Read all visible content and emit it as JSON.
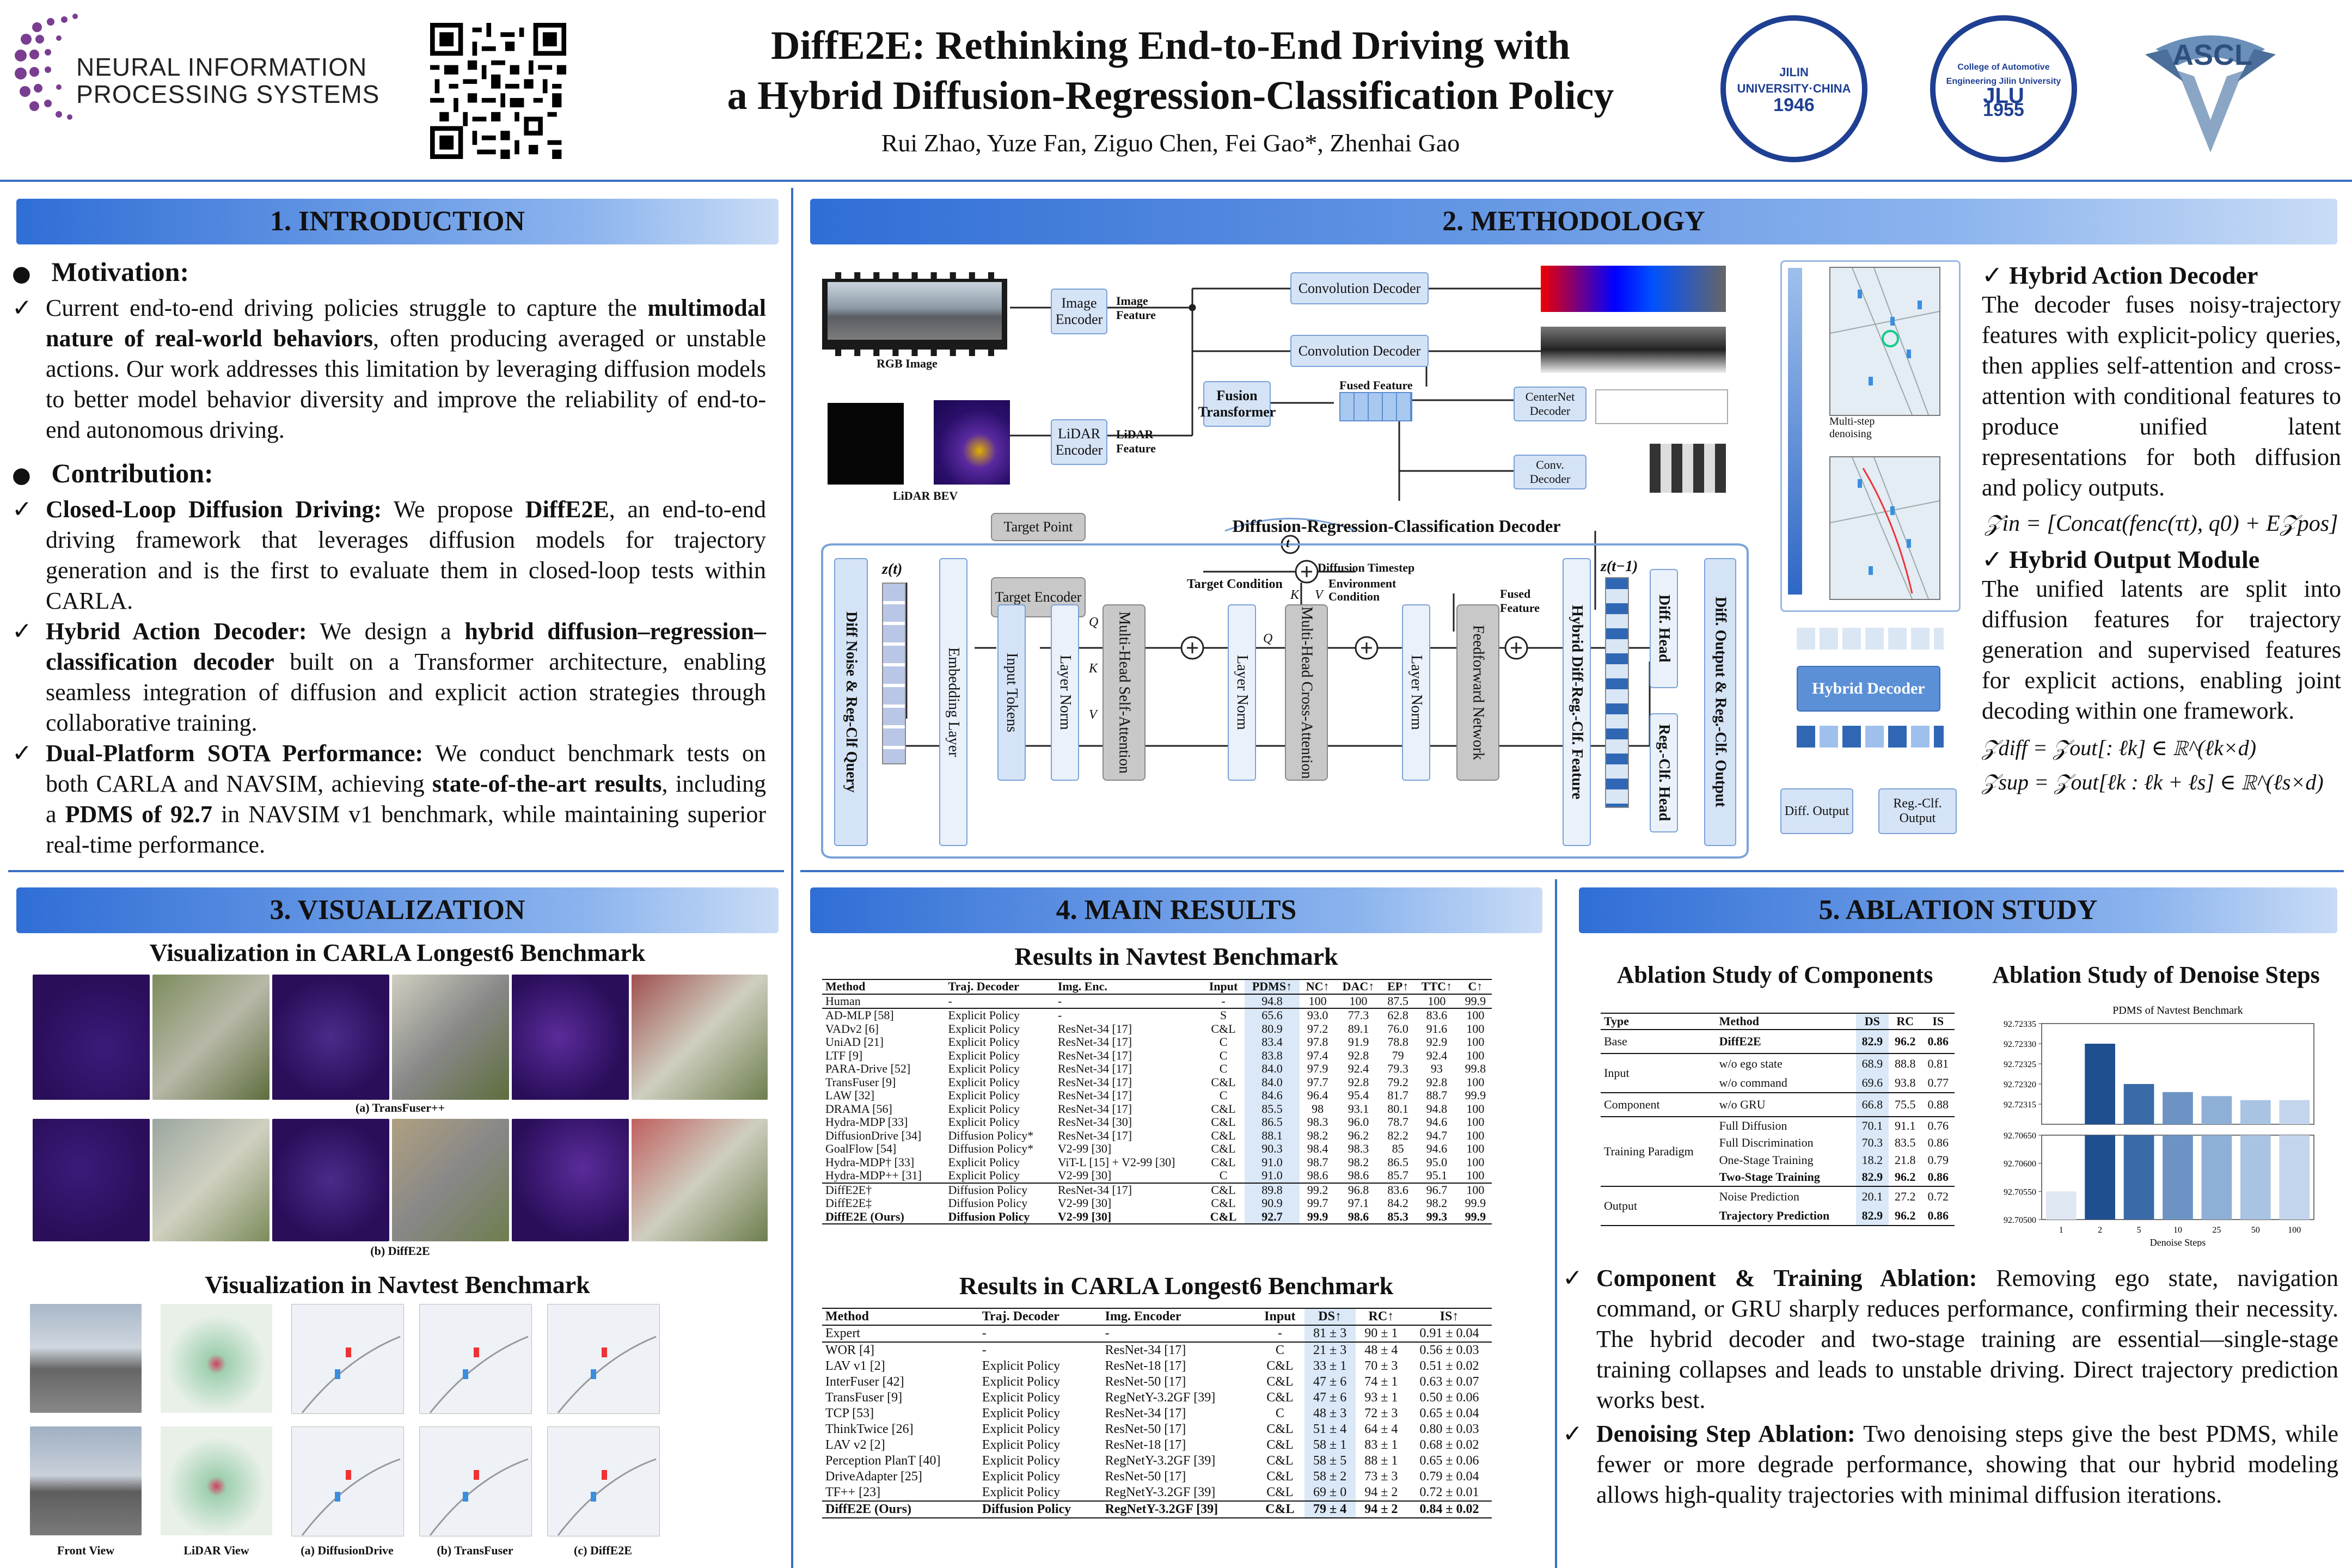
{
  "header": {
    "title_line1": "DiffE2E: Rethinking End-to-End Driving with",
    "title_line2": "a Hybrid Diffusion-Regression-Classification Policy",
    "authors": "Rui Zhao, Yuze Fan, Ziguo Chen, Fei Gao*, Zhenhai Gao",
    "logo_line1": "NEURAL INFORMATION",
    "logo_line2": "PROCESSING SYSTEMS",
    "seal1_text": "JILIN UNIVERSITY·CHINA",
    "seal1_year": "1946",
    "seal2_text": "College of Automotive Engineering Jilin University",
    "seal2_year": "1955",
    "seal2_mid": "JLU",
    "ascl": "ASCL"
  },
  "intro": {
    "heading": "1. INTRODUCTION",
    "motivation_title": "Motivation:",
    "motivation_pre": "Current end-to-end driving policies struggle to capture the ",
    "motivation_bold": "multimodal nature of real-world behaviors",
    "motivation_post": ", often producing averaged or unstable actions. Our work addresses this limitation by leveraging diffusion models to better model behavior diversity and improve the reliability of end-to-end autonomous driving.",
    "contribution_title": "Contribution:",
    "c1_title": "Closed-Loop Diffusion Driving:",
    "c1_pre": " We propose ",
    "c1_bold": "DiffE2E",
    "c1_post": ", an end-to-end driving framework that leverages diffusion models for trajectory generation and is the first to evaluate them in closed-loop tests within CARLA.",
    "c2_title": "Hybrid Action Decoder:",
    "c2_pre": " We design a ",
    "c2_bold": "hybrid diffusion–regression–classification decoder",
    "c2_post": " built on a Transformer architecture, enabling seamless integration of diffusion and explicit action strategies through collaborative training.",
    "c3_title": "Dual-Platform SOTA Performance:",
    "c3_pre": " We conduct benchmark tests on both CARLA and NAVSIM, achieving ",
    "c3_bold1": "state-of-the-art results",
    "c3_mid": ", including a ",
    "c3_bold2": "PDMS of 92.7",
    "c3_post": " in NAVSIM v1 benchmark, while maintaining superior real-time performance."
  },
  "method": {
    "heading": "2. METHODOLOGY",
    "rgb_label": "RGB Image",
    "lidar_label": "LiDAR BEV",
    "image_encoder": "Image Encoder",
    "lidar_encoder": "LiDAR Encoder",
    "image_feature": "Image Feature",
    "lidar_feature": "LiDAR Feature",
    "fusion_transformer": "Fusion Transformer",
    "fused_feature": "Fused Feature",
    "conv_decoder1": "Convolution Decoder",
    "conv_decoder2": "Convolution Decoder",
    "centernet_decoder": "CenterNet Decoder",
    "conv_decoder3": "Conv. Decoder",
    "target_point": "Target Point",
    "drc_decoder": "Diffusion-Regression-Classification Decoder",
    "diff_noise_query": "Diff Noise & Reg-Clf Query",
    "z_t": "z(t)",
    "z_t1": "z(t−1)",
    "embedding_layer": "Embedding Layer",
    "target_encoder": "Target Encoder",
    "target_condition": "Target Condition",
    "diffusion_timestep": "Diffusion Timestep",
    "environment_condition": "Environment Condition",
    "fused_feature2": "Fused Feature",
    "input_tokens": "Input Tokens",
    "layer_norm": "Layer Norm",
    "mhsa": "Multi-Head Self-Attention",
    "mhca": "Multi-Head Cross-Attention",
    "ffn": "Feedforward Network",
    "hybrid_feature": "Hybrid Diff-Reg.-Clf. Feature",
    "diff_head": "Diff. Head",
    "regclf_head": "Reg.-Clf. Head",
    "diff_output": "Diff. Output & Reg.-Clf. Output",
    "multistep": "Multi-step denoising",
    "hybrid_decoder": "Hybrid Decoder",
    "diff_output_small": "Diff. Output",
    "regclf_output_small": "Reg.-Clf. Output",
    "q": "Q",
    "k": "K",
    "v": "V",
    "t": "t",
    "had_title": "Hybrid Action Decoder",
    "had_text": "The decoder fuses noisy-trajectory features with explicit-policy queries, then applies self-attention and cross-attention with conditional features to produce unified latent representations for both diffusion and policy outputs.",
    "eq1": "𝒵in = [Concat(fenc(τt), q0) + E𝒵pos]",
    "hom_title": "Hybrid Output Module",
    "hom_text": "The unified latents are split into diffusion features for trajectory generation and supervised features for explicit actions, enabling joint decoding within one framework.",
    "eq2": "𝒵diff = 𝒵out[: ℓk] ∈ ℝ^(ℓk×d)",
    "eq3": "𝒵sup = 𝒵out[ℓk : ℓk + ℓs] ∈ ℝ^(ℓs×d)"
  },
  "viz": {
    "heading": "3. VISUALIZATION",
    "carla_title": "Visualization in CARLA Longest6 Benchmark",
    "cap_a": "(a) TransFuser++",
    "cap_b": "(b) DiffE2E",
    "navtest_title": "Visualization in Navtest Benchmark",
    "cap_front": "Front View",
    "cap_lidar": "LiDAR View",
    "cap_dd": "(a) DiffusionDrive",
    "cap_tf": "(b) TransFuser",
    "cap_de": "(c) DiffE2E"
  },
  "results": {
    "heading": "4. MAIN RESULTS",
    "navtest_title": "Results in Navtest Benchmark",
    "navtest_header": [
      "Method",
      "Traj. Decoder",
      "Img. Enc.",
      "Input",
      "PDMS↑",
      "NC↑",
      "DAC↑",
      "EP↑",
      "TTC↑",
      "C↑"
    ],
    "navtest_human": [
      "Human",
      "-",
      "-",
      "-",
      "94.8",
      "100",
      "100",
      "87.5",
      "100",
      "99.9"
    ],
    "navtest_rows": [
      [
        "AD-MLP [58]",
        "Explicit Policy",
        "-",
        "S",
        "65.6",
        "93.0",
        "77.3",
        "62.8",
        "83.6",
        "100"
      ],
      [
        "VADv2 [6]",
        "Explicit Policy",
        "ResNet-34 [17]",
        "C&L",
        "80.9",
        "97.2",
        "89.1",
        "76.0",
        "91.6",
        "100"
      ],
      [
        "UniAD [21]",
        "Explicit Policy",
        "ResNet-34 [17]",
        "C",
        "83.4",
        "97.8",
        "91.9",
        "78.8",
        "92.9",
        "100"
      ],
      [
        "LTF [9]",
        "Explicit Policy",
        "ResNet-34 [17]",
        "C",
        "83.8",
        "97.4",
        "92.8",
        "79",
        "92.4",
        "100"
      ],
      [
        "PARA-Drive [52]",
        "Explicit Policy",
        "ResNet-34 [17]",
        "C",
        "84.0",
        "97.9",
        "92.4",
        "79.3",
        "93",
        "99.8"
      ],
      [
        "TransFuser [9]",
        "Explicit Policy",
        "ResNet-34 [17]",
        "C&L",
        "84.0",
        "97.7",
        "92.8",
        "79.2",
        "92.8",
        "100"
      ],
      [
        "LAW [32]",
        "Explicit Policy",
        "ResNet-34 [17]",
        "C",
        "84.6",
        "96.4",
        "95.4",
        "81.7",
        "88.7",
        "99.9"
      ],
      [
        "DRAMA [56]",
        "Explicit Policy",
        "ResNet-34 [17]",
        "C&L",
        "85.5",
        "98",
        "93.1",
        "80.1",
        "94.8",
        "100"
      ],
      [
        "Hydra-MDP [33]",
        "Explicit Policy",
        "ResNet-34 [30]",
        "C&L",
        "86.5",
        "98.3",
        "96.0",
        "78.7",
        "94.6",
        "100"
      ],
      [
        "DiffusionDrive [34]",
        "Diffusion Policy*",
        "ResNet-34 [17]",
        "C&L",
        "88.1",
        "98.2",
        "96.2",
        "82.2",
        "94.7",
        "100"
      ],
      [
        "GoalFlow [54]",
        "Diffusion Policy*",
        "V2-99 [30]",
        "C&L",
        "90.3",
        "98.4",
        "98.3",
        "85",
        "94.6",
        "100"
      ],
      [
        "Hydra-MDP† [33]",
        "Explicit Policy",
        "ViT-L [15] + V2-99 [30]",
        "C&L",
        "91.0",
        "98.7",
        "98.2",
        "86.5",
        "95.0",
        "100"
      ],
      [
        "Hydra-MDP++ [31]",
        "Explicit Policy",
        "V2-99 [30]",
        "C",
        "91.0",
        "98.6",
        "98.6",
        "85.7",
        "95.1",
        "100"
      ]
    ],
    "navtest_ours": [
      [
        "DiffE2E†",
        "Diffusion Policy",
        "ResNet-34 [17]",
        "C&L",
        "89.8",
        "99.2",
        "96.8",
        "83.6",
        "96.7",
        "100"
      ],
      [
        "DiffE2E‡",
        "Diffusion Policy",
        "V2-99 [30]",
        "C&L",
        "90.9",
        "99.7",
        "97.1",
        "84.2",
        "98.2",
        "99.9"
      ],
      [
        "DiffE2E (Ours)",
        "Diffusion Policy",
        "V2-99 [30]",
        "C&L",
        "92.7",
        "99.9",
        "98.6",
        "85.3",
        "99.3",
        "99.9"
      ]
    ],
    "carla_title": "Results in CARLA Longest6 Benchmark",
    "carla_header": [
      "Method",
      "Traj. Decoder",
      "Img. Encoder",
      "Input",
      "DS↑",
      "RC↑",
      "IS↑"
    ],
    "carla_expert": [
      "Expert",
      "-",
      "-",
      "-",
      "81 ± 3",
      "90 ± 1",
      "0.91 ± 0.04"
    ],
    "carla_rows": [
      [
        "WOR [4]",
        "-",
        "ResNet-34 [17]",
        "C",
        "21 ± 3",
        "48 ± 4",
        "0.56 ± 0.03"
      ],
      [
        "LAV v1 [2]",
        "Explicit Policy",
        "ResNet-18 [17]",
        "C&L",
        "33 ± 1",
        "70 ± 3",
        "0.51 ± 0.02"
      ],
      [
        "InterFuser [42]",
        "Explicit Policy",
        "ResNet-50 [17]",
        "C&L",
        "47 ± 6",
        "74 ± 1",
        "0.63 ± 0.07"
      ],
      [
        "TransFuser [9]",
        "Explicit Policy",
        "RegNetY-3.2GF [39]",
        "C&L",
        "47 ± 6",
        "93 ± 1",
        "0.50 ± 0.06"
      ],
      [
        "TCP [53]",
        "Explicit Policy",
        "ResNet-34 [17]",
        "C",
        "48 ± 3",
        "72 ± 3",
        "0.65 ± 0.04"
      ],
      [
        "ThinkTwice [26]",
        "Explicit Policy",
        "ResNet-50 [17]",
        "C&L",
        "51 ± 4",
        "64 ± 4",
        "0.80 ± 0.03"
      ],
      [
        "LAV v2 [2]",
        "Explicit Policy",
        "ResNet-18 [17]",
        "C&L",
        "58 ± 1",
        "83 ± 1",
        "0.68 ± 0.02"
      ],
      [
        "Perception PlanT [40]",
        "Explicit Policy",
        "RegNetY-3.2GF [39]",
        "C&L",
        "58 ± 5",
        "88 ± 1",
        "0.65 ± 0.06"
      ],
      [
        "DriveAdapter [25]",
        "Explicit Policy",
        "ResNet-50 [17]",
        "C&L",
        "58 ± 2",
        "73 ± 3",
        "0.79 ± 0.04"
      ],
      [
        "TF++ [23]",
        "Explicit Policy",
        "RegNetY-3.2GF [39]",
        "C&L",
        "69 ± 0",
        "94 ± 2",
        "0.72 ± 0.01"
      ]
    ],
    "carla_ours": [
      "DiffE2E (Ours)",
      "Diffusion Policy",
      "RegNetY-3.2GF [39]",
      "C&L",
      "79 ± 4",
      "94 ± 2",
      "0.84 ± 0.02"
    ]
  },
  "ablation": {
    "heading": "5. ABLATION STUDY",
    "comp_title": "Ablation Study of Components",
    "comp_header": [
      "Type",
      "Method",
      "DS",
      "RC",
      "IS"
    ],
    "comp_groups": [
      {
        "type": "Base",
        "rows": [
          [
            "DiffE2E",
            "82.9",
            "96.2",
            "0.86"
          ]
        ]
      },
      {
        "type": "Input",
        "rows": [
          [
            "w/o ego state",
            "68.9",
            "88.8",
            "0.81"
          ],
          [
            "w/o command",
            "69.6",
            "93.8",
            "0.77"
          ]
        ]
      },
      {
        "type": "Component",
        "rows": [
          [
            "w/o GRU",
            "66.8",
            "75.5",
            "0.88"
          ]
        ]
      },
      {
        "type": "Training Paradigm",
        "rows": [
          [
            "Full Diffusion",
            "70.1",
            "91.1",
            "0.76"
          ],
          [
            "Full Discrimination",
            "70.3",
            "83.5",
            "0.86"
          ],
          [
            "One-Stage Training",
            "18.2",
            "21.8",
            "0.79"
          ],
          [
            "Two-Stage Training",
            "82.9",
            "96.2",
            "0.86"
          ]
        ]
      },
      {
        "type": "Output",
        "rows": [
          [
            "Noise Prediction",
            "20.1",
            "27.2",
            "0.72"
          ],
          [
            "Trajectory Prediction",
            "82.9",
            "96.2",
            "0.86"
          ]
        ]
      }
    ],
    "steps_title": "Ablation Study of Denoise Steps",
    "chart_title": "PDMS of Navtest Benchmark",
    "chart_xlabel": "Denoise Steps",
    "cta_title": "Component & Training Ablation:",
    "cta_text": " Removing ego state, navigation command, or GRU sharply reduces performance, confirming their necessity. The hybrid decoder and two-stage training are essential—single-stage training collapses and leads to unstable driving. Direct trajectory prediction works best.",
    "dsa_title": "Denoising Step Ablation:",
    "dsa_text": " Two denoising steps give the best PDMS, while fewer or more degrade performance, showing that our hybrid modeling allows high-quality trajectories with minimal diffusion iterations."
  },
  "chart_data": {
    "type": "bar",
    "title": "PDMS of Navtest Benchmark",
    "xlabel": "Denoise Steps",
    "ylabel": "",
    "categories": [
      "1",
      "2",
      "5",
      "10",
      "25",
      "50",
      "100"
    ],
    "values": [
      92.7055,
      92.7233,
      92.7232,
      92.72318,
      92.72317,
      92.72316,
      92.72316
    ],
    "upper_ylim": [
      92.7231,
      92.72335
    ],
    "upper_ticks": [
      "92.72315",
      "92.72320",
      "92.72325",
      "92.72330",
      "92.72335"
    ],
    "lower_ylim": [
      92.705,
      92.7065
    ],
    "lower_ticks": [
      "92.70500",
      "92.70550",
      "92.70600",
      "92.70650"
    ],
    "colors": [
      "#dfe7f2",
      "#1f4f8f",
      "#3a6aa8",
      "#6c93c4",
      "#8fb0d6",
      "#a9c3e2",
      "#c2d5ec"
    ]
  }
}
